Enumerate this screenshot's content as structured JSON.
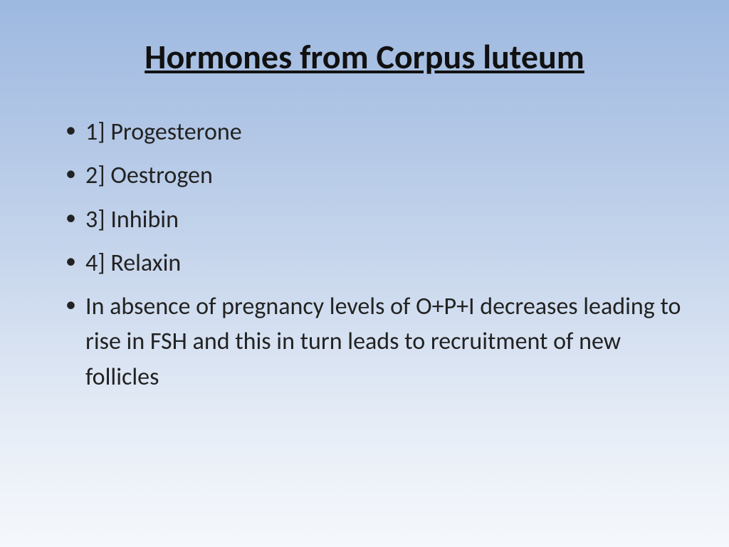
{
  "slide": {
    "title": "Hormones from Corpus luteum",
    "bullets": [
      "1] Progesterone",
      "2] Oestrogen",
      "3] Inhibin",
      "4] Relaxin",
      "In absence of pregnancy levels of O+P+I decreases leading to rise in FSH and this in turn leads to recruitment of new follicles"
    ],
    "style": {
      "bg_gradient_top": "#9db8e0",
      "bg_gradient_mid": "#c0d1ea",
      "bg_gradient_bottom": "#f5f8fc",
      "title_fontsize": 48,
      "title_weight": 700,
      "title_underline": true,
      "body_fontsize": 34,
      "text_color": "#1a1a1a",
      "font_family": "Calibri"
    }
  }
}
